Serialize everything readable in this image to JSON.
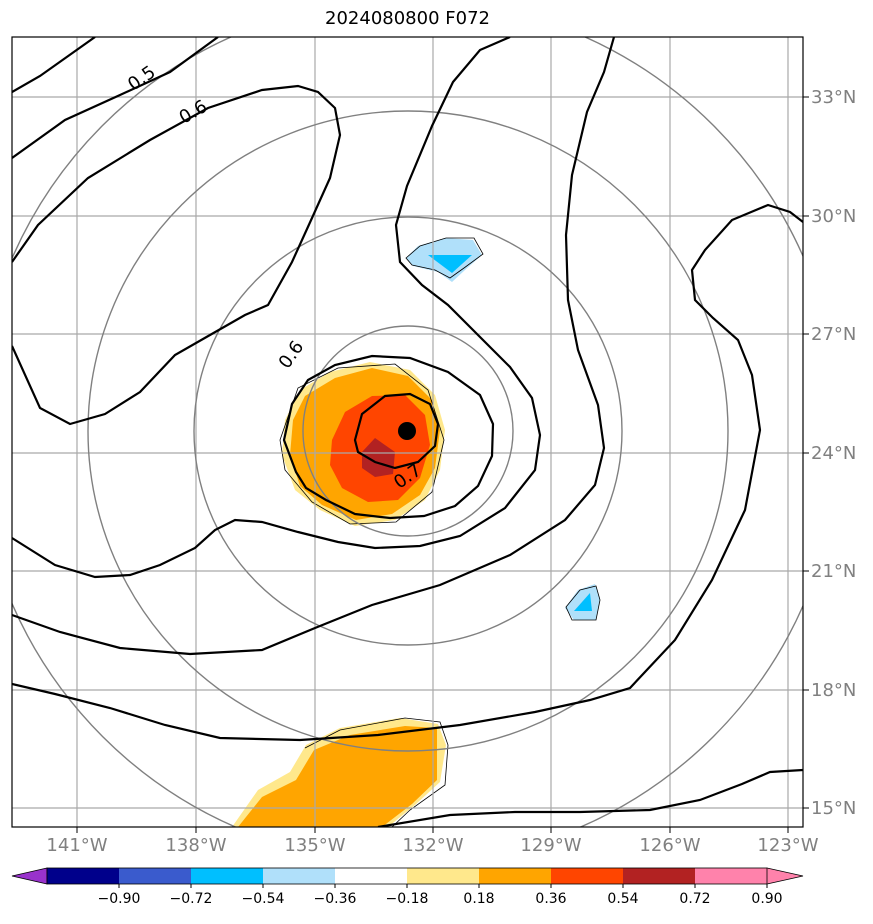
{
  "chart_data": {
    "type": "map-contour",
    "title": "2024080800 F072",
    "x_ticks": [
      "141°W",
      "138°W",
      "135°W",
      "132°W",
      "129°W",
      "126°W",
      "123°W"
    ],
    "y_ticks": [
      "33°N",
      "30°N",
      "27°N",
      "24°N",
      "21°N",
      "18°N",
      "15°N"
    ],
    "extent": {
      "lon": [
        -142.6,
        -122.5
      ],
      "lat": [
        14.5,
        34.5
      ]
    },
    "grid": true,
    "contour_labels": [
      "0.5",
      "0.6",
      "0.6",
      "0.7"
    ],
    "center_marker": {
      "lon": -132.0,
      "lat": 24.6
    },
    "colorbar": {
      "ticks": [
        "−0.90",
        "−0.72",
        "−0.54",
        "−0.36",
        "−0.18",
        "0.18",
        "0.36",
        "0.54",
        "0.72",
        "0.90"
      ],
      "colors": [
        "#9932cc",
        "#00008b",
        "#3a5bcd",
        "#00bfff",
        "#b0e0fa",
        "#ffffff",
        "#ffe88c",
        "#ffa500",
        "#ff4500",
        "#b22222",
        "#ff82ab",
        "#ff82ab"
      ],
      "extend": "both"
    }
  }
}
